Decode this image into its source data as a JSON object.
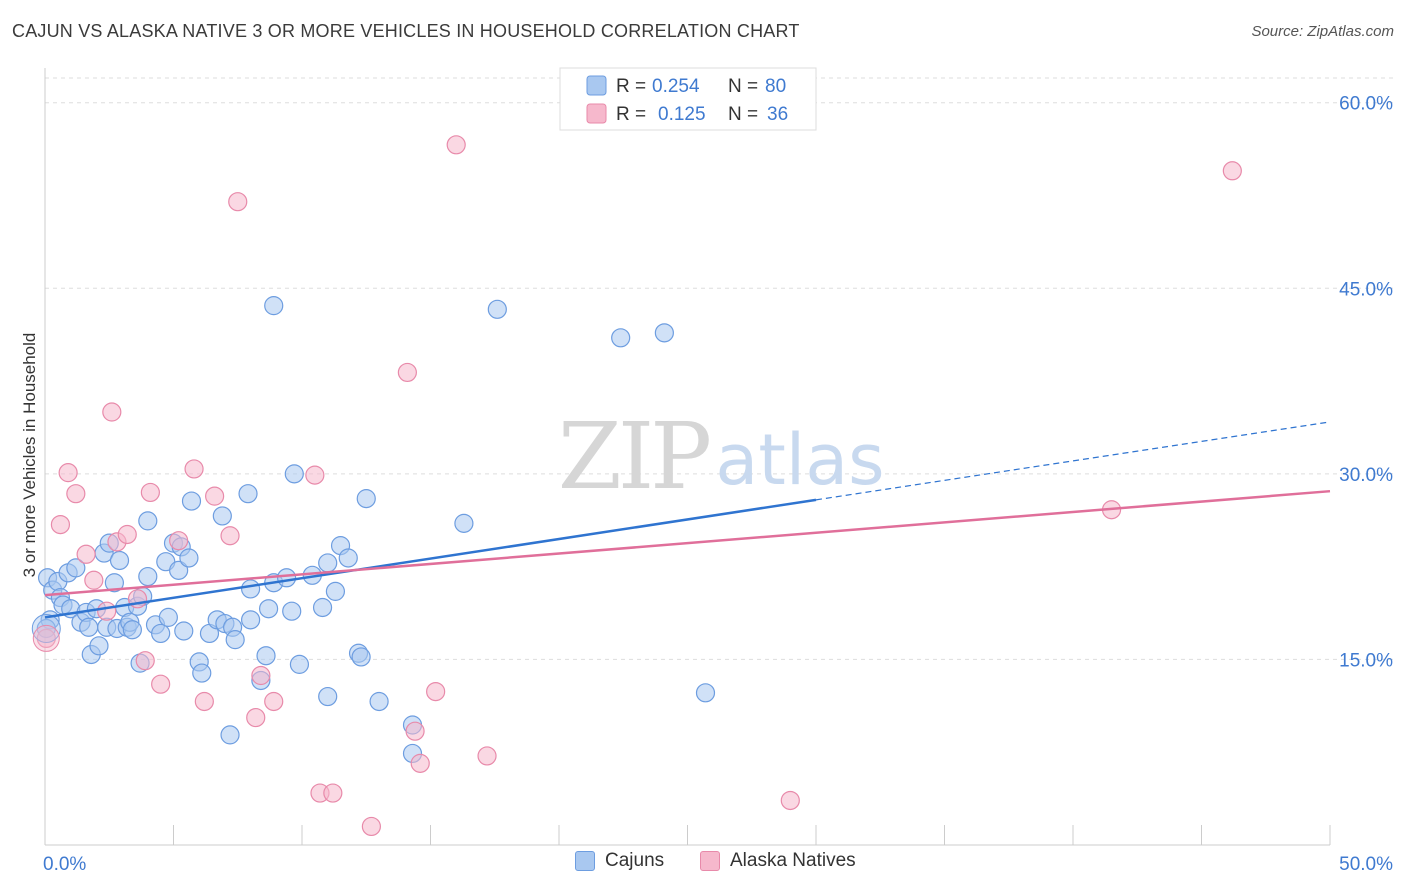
{
  "title": "CAJUN VS ALASKA NATIVE 3 OR MORE VEHICLES IN HOUSEHOLD CORRELATION CHART",
  "source": "Source: ZipAtlas.com",
  "watermark": {
    "zip": "ZIP",
    "atlas": "atlas"
  },
  "legend_top": [
    {
      "r_label": "R =",
      "r_value": "0.254",
      "n_label": "N =",
      "n_value": "80"
    },
    {
      "r_label": "R =",
      "r_value": "0.125",
      "n_label": "N =",
      "n_value": "36"
    }
  ],
  "colors": {
    "blue_fill": "#a9c8f0",
    "blue_stroke": "#6d9de0",
    "blue_line": "#2f74d0",
    "pink_fill": "#f6b8cc",
    "pink_stroke": "#e88aaa",
    "pink_line": "#e06f9a",
    "axis_text": "#3f7ad0",
    "grid": "#dddddd"
  },
  "chart_data": {
    "type": "scatter",
    "xlabel": "",
    "ylabel": "3 or more Vehicles in Household",
    "xlim": [
      0,
      50
    ],
    "ylim": [
      0,
      62
    ],
    "x_tick_labels": [
      {
        "value": 0,
        "label": "0.0%"
      },
      {
        "value": 50,
        "label": "50.0%"
      }
    ],
    "y_tick_labels": [
      {
        "value": 15,
        "label": "15.0%"
      },
      {
        "value": 30,
        "label": "30.0%"
      },
      {
        "value": 45,
        "label": "45.0%"
      },
      {
        "value": 60,
        "label": "60.0%"
      }
    ],
    "grid": true,
    "legend_position": "top-center",
    "series": [
      {
        "name": "Cajuns",
        "color": "#a9c8f0",
        "trend": {
          "x": [
            0,
            30,
            50
          ],
          "y": [
            18.4,
            27.9,
            34.2
          ],
          "solid_until": 30
        },
        "points": [
          [
            0.1,
            21.6
          ],
          [
            0.2,
            18.2
          ],
          [
            0.3,
            20.6
          ],
          [
            0.5,
            21.3
          ],
          [
            0.6,
            20.0
          ],
          [
            0.7,
            19.4
          ],
          [
            0.9,
            22.0
          ],
          [
            1.0,
            19.1
          ],
          [
            1.2,
            22.4
          ],
          [
            1.4,
            18.0
          ],
          [
            1.6,
            18.8
          ],
          [
            1.7,
            17.6
          ],
          [
            1.8,
            15.4
          ],
          [
            2.0,
            19.1
          ],
          [
            2.1,
            16.1
          ],
          [
            2.3,
            23.6
          ],
          [
            2.4,
            17.6
          ],
          [
            2.5,
            24.4
          ],
          [
            2.7,
            21.2
          ],
          [
            2.8,
            17.5
          ],
          [
            2.9,
            23.0
          ],
          [
            3.1,
            19.2
          ],
          [
            3.2,
            17.6
          ],
          [
            3.3,
            18.0
          ],
          [
            3.4,
            17.4
          ],
          [
            3.6,
            19.3
          ],
          [
            3.7,
            14.7
          ],
          [
            3.8,
            20.1
          ],
          [
            4.0,
            21.7
          ],
          [
            4.0,
            26.2
          ],
          [
            4.3,
            17.8
          ],
          [
            4.5,
            17.1
          ],
          [
            4.7,
            22.9
          ],
          [
            4.8,
            18.4
          ],
          [
            5.0,
            24.4
          ],
          [
            5.2,
            22.2
          ],
          [
            5.3,
            24.1
          ],
          [
            5.4,
            17.3
          ],
          [
            5.6,
            23.2
          ],
          [
            5.7,
            27.8
          ],
          [
            6.0,
            14.8
          ],
          [
            6.1,
            13.9
          ],
          [
            6.4,
            17.1
          ],
          [
            6.7,
            18.2
          ],
          [
            6.9,
            26.6
          ],
          [
            7.0,
            17.9
          ],
          [
            7.2,
            8.9
          ],
          [
            7.3,
            17.6
          ],
          [
            7.4,
            16.6
          ],
          [
            7.9,
            28.4
          ],
          [
            8.0,
            20.7
          ],
          [
            8.0,
            18.2
          ],
          [
            8.4,
            13.3
          ],
          [
            8.6,
            15.3
          ],
          [
            8.7,
            19.1
          ],
          [
            8.9,
            43.6
          ],
          [
            8.9,
            21.2
          ],
          [
            9.4,
            21.6
          ],
          [
            9.6,
            18.9
          ],
          [
            9.7,
            30.0
          ],
          [
            9.9,
            14.6
          ],
          [
            10.4,
            21.8
          ],
          [
            10.8,
            19.2
          ],
          [
            11.0,
            22.8
          ],
          [
            11.0,
            12.0
          ],
          [
            11.3,
            20.5
          ],
          [
            11.5,
            24.2
          ],
          [
            11.8,
            23.2
          ],
          [
            12.2,
            15.5
          ],
          [
            12.3,
            15.2
          ],
          [
            12.5,
            28.0
          ],
          [
            13.0,
            11.6
          ],
          [
            14.3,
            9.7
          ],
          [
            14.3,
            7.4
          ],
          [
            16.3,
            26.0
          ],
          [
            17.6,
            43.3
          ],
          [
            22.4,
            41.0
          ],
          [
            24.1,
            41.4
          ],
          [
            25.7,
            12.3
          ],
          [
            0.05,
            17.5
          ]
        ]
      },
      {
        "name": "Alaska Natives",
        "color": "#f6b8cc",
        "trend": {
          "x": [
            0,
            50
          ],
          "y": [
            20.2,
            28.6
          ]
        },
        "points": [
          [
            0.05,
            16.7
          ],
          [
            0.6,
            25.9
          ],
          [
            0.9,
            30.1
          ],
          [
            1.2,
            28.4
          ],
          [
            1.6,
            23.5
          ],
          [
            1.9,
            21.4
          ],
          [
            2.4,
            18.9
          ],
          [
            2.6,
            35.0
          ],
          [
            2.8,
            24.5
          ],
          [
            3.2,
            25.1
          ],
          [
            3.6,
            19.9
          ],
          [
            3.9,
            14.9
          ],
          [
            4.1,
            28.5
          ],
          [
            4.5,
            13.0
          ],
          [
            5.2,
            24.6
          ],
          [
            5.8,
            30.4
          ],
          [
            6.2,
            11.6
          ],
          [
            6.6,
            28.2
          ],
          [
            7.2,
            25.0
          ],
          [
            7.5,
            52.0
          ],
          [
            8.2,
            10.3
          ],
          [
            8.4,
            13.7
          ],
          [
            8.9,
            11.6
          ],
          [
            10.5,
            29.9
          ],
          [
            10.7,
            4.2
          ],
          [
            11.2,
            4.2
          ],
          [
            12.7,
            1.5
          ],
          [
            14.1,
            38.2
          ],
          [
            14.4,
            9.2
          ],
          [
            14.6,
            6.6
          ],
          [
            15.2,
            12.4
          ],
          [
            16.0,
            56.6
          ],
          [
            17.2,
            7.2
          ],
          [
            29.0,
            3.6
          ],
          [
            41.5,
            27.1
          ],
          [
            46.2,
            54.5
          ]
        ]
      }
    ]
  }
}
